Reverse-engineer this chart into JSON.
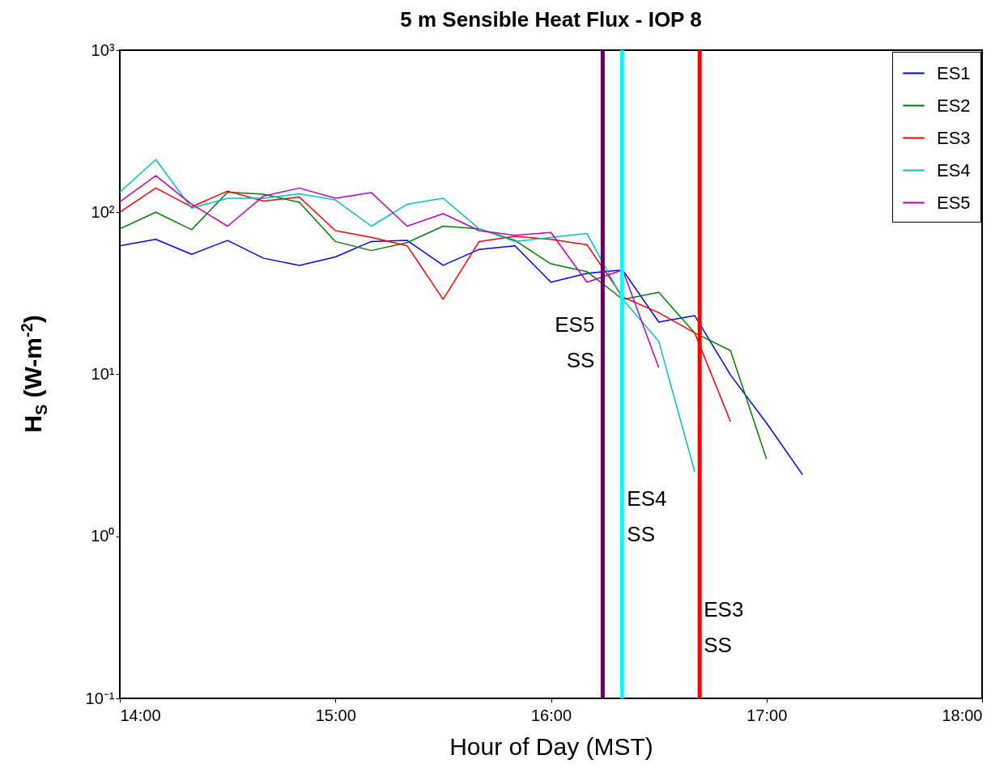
{
  "chart_data": {
    "type": "line",
    "title": "5 m Sensible Heat Flux - IOP 8",
    "xlabel": "Hour of Day (MST)",
    "ylabel": "H$_{S}$ (W-m$^{-2}$)",
    "xlim": [
      14,
      18
    ],
    "xticks": [
      {
        "value": 14,
        "label": "14:00"
      },
      {
        "value": 15,
        "label": "15:00"
      },
      {
        "value": 16,
        "label": "16:00"
      },
      {
        "value": 17,
        "label": "17:00"
      },
      {
        "value": 18,
        "label": "18:00"
      }
    ],
    "ylim": [
      0.1,
      1000
    ],
    "yticks": [
      {
        "value": 0.1,
        "label": "10⁻¹"
      },
      {
        "value": 1,
        "label": "10⁰"
      },
      {
        "value": 10,
        "label": "10¹"
      },
      {
        "value": 100,
        "label": "10²"
      },
      {
        "value": 1000,
        "label": "10³"
      }
    ],
    "log": "y",
    "grid": false,
    "legend": "top right",
    "series": [
      {
        "name": "ES1",
        "color": "#0000ff",
        "x": [
          14,
          14.167,
          14.333,
          14.5,
          14.667,
          14.833,
          15,
          15.167,
          15.333,
          15.5,
          15.667,
          15.833,
          16,
          16.167,
          16.333,
          16.5,
          16.667,
          16.833,
          17,
          17.167
        ],
        "values": [
          62,
          68,
          55,
          67,
          52,
          47,
          53,
          66,
          67,
          47,
          59,
          62,
          37,
          42,
          44,
          21,
          23,
          9.9,
          5.0,
          2.4
        ]
      },
      {
        "name": "ES2",
        "color": "#008000",
        "x": [
          14,
          14.167,
          14.333,
          14.5,
          14.667,
          14.833,
          15,
          15.167,
          15.333,
          15.5,
          15.667,
          15.833,
          16,
          16.167,
          16.333,
          16.5,
          16.667,
          16.833,
          17
        ],
        "values": [
          79,
          100,
          78,
          133,
          129,
          115,
          66,
          58,
          65,
          82,
          79,
          67,
          48,
          43,
          29,
          32,
          18,
          14,
          3.0
        ]
      },
      {
        "name": "ES3",
        "color": "#ff0000",
        "x": [
          14,
          14.167,
          14.333,
          14.5,
          14.667,
          14.833,
          15,
          15.167,
          15.333,
          15.5,
          15.667,
          15.833,
          16,
          16.167,
          16.333,
          16.5,
          16.667,
          16.833
        ],
        "values": [
          100,
          141,
          108,
          135,
          117,
          124,
          77,
          70,
          62,
          29,
          66,
          71,
          68,
          63,
          30,
          24,
          18,
          5.1
        ]
      },
      {
        "name": "ES4",
        "color": "#00bfbf",
        "x": [
          14,
          14.167,
          14.333,
          14.5,
          14.667,
          14.833,
          15,
          15.167,
          15.333,
          15.5,
          15.667,
          15.833,
          16,
          16.167,
          16.333,
          16.5,
          16.667
        ],
        "values": [
          133,
          211,
          106,
          122,
          122,
          130,
          119,
          82,
          112,
          122,
          79,
          66,
          70,
          74,
          29,
          16,
          2.5
        ]
      },
      {
        "name": "ES5",
        "color": "#bf00bf",
        "x": [
          14,
          14.167,
          14.333,
          14.5,
          14.667,
          14.833,
          15,
          15.167,
          15.333,
          15.5,
          15.667,
          15.833,
          16,
          16.167,
          16.333,
          16.5
        ],
        "values": [
          116,
          168,
          112,
          82,
          126,
          141,
          122,
          132,
          82,
          98,
          77,
          72,
          75,
          37,
          44,
          11
        ]
      }
    ],
    "ref_lines": [
      {
        "axis": "x",
        "value": 16.24,
        "label": "ES5 SS",
        "color": "#660066"
      },
      {
        "axis": "x",
        "value": 16.33,
        "label": "ES4 SS",
        "color": "#00ffff"
      },
      {
        "axis": "x",
        "value": 16.69,
        "label": "ES3 SS",
        "color": "#ff0000"
      }
    ]
  }
}
